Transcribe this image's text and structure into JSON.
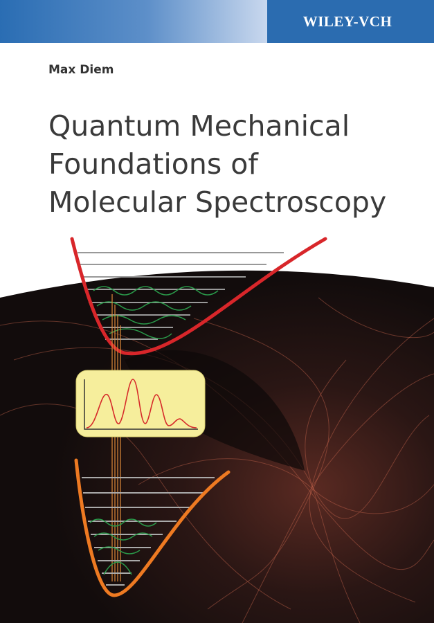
{
  "publisher": "WILEY-VCH",
  "author": "Max Diem",
  "title_lines": [
    "Quantum Mechanical",
    "Foundations of",
    "Molecular Spectroscopy"
  ]
}
